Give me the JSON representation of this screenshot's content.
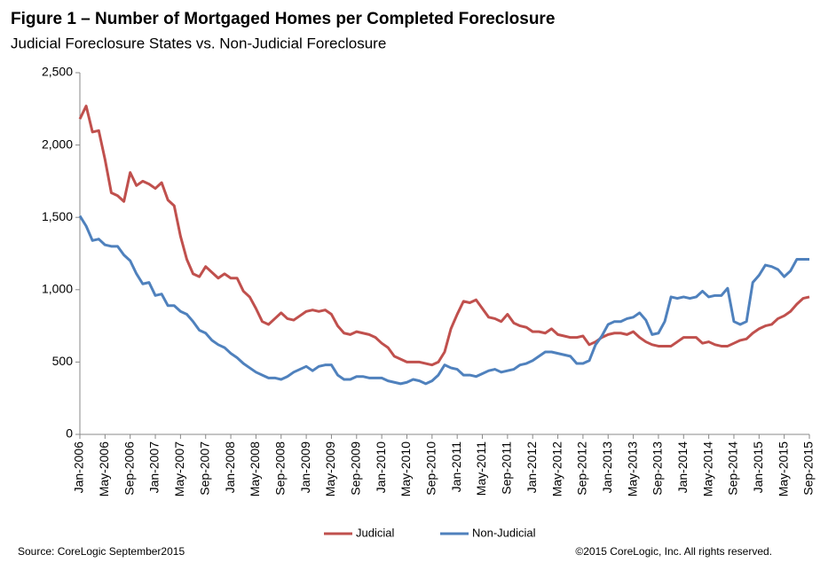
{
  "chart_data": {
    "type": "line",
    "title": "Figure 1 – Number of Mortgaged Homes per Completed Foreclosure",
    "subtitle": "Judicial Foreclosure States vs. Non-Judicial Foreclosure",
    "source": "Source: CoreLogic  September2015",
    "copyright": "©2015 CoreLogic, Inc. All rights reserved.",
    "categories": [
      "Jan-2006",
      null,
      null,
      null,
      "May-2006",
      null,
      null,
      null,
      "Sep-2006",
      null,
      null,
      null,
      "Jan-2007",
      null,
      null,
      null,
      "May-2007",
      null,
      null,
      null,
      "Sep-2007",
      null,
      null,
      null,
      "Jan-2008",
      null,
      null,
      null,
      "May-2008",
      null,
      null,
      null,
      "Sep-2008",
      null,
      null,
      null,
      "Jan-2009",
      null,
      null,
      null,
      "May-2009",
      null,
      null,
      null,
      "Sep-2009",
      null,
      null,
      null,
      "Jan-2010",
      null,
      null,
      null,
      "May-2010",
      null,
      null,
      null,
      "Sep-2010",
      null,
      null,
      null,
      "Jan-2011",
      null,
      null,
      null,
      "May-2011",
      null,
      null,
      null,
      "Sep-2011",
      null,
      null,
      null,
      "Jan-2012",
      null,
      null,
      null,
      "May-2012",
      null,
      null,
      null,
      "Sep-2012",
      null,
      null,
      null,
      "Jan-2013",
      null,
      null,
      null,
      "May-2013",
      null,
      null,
      null,
      "Sep-2013",
      null,
      null,
      null,
      "Jan-2014",
      null,
      null,
      null,
      "May-2014",
      null,
      null,
      null,
      "Sep-2014",
      null,
      null,
      null,
      "Jan-2015",
      null,
      null,
      null,
      "May-2015",
      null,
      null,
      null,
      "Sep-2015"
    ],
    "series": [
      {
        "name": "Judicial",
        "color": "#c0504d",
        "values": [
          2180,
          2270,
          2090,
          2100,
          1900,
          1670,
          1650,
          1610,
          1810,
          1720,
          1750,
          1730,
          1700,
          1740,
          1620,
          1580,
          1370,
          1210,
          1110,
          1090,
          1160,
          1120,
          1080,
          1110,
          1080,
          1080,
          990,
          950,
          870,
          780,
          760,
          800,
          840,
          800,
          790,
          820,
          850,
          860,
          850,
          860,
          830,
          750,
          700,
          690,
          710,
          700,
          690,
          670,
          630,
          600,
          540,
          520,
          500,
          500,
          500,
          490,
          480,
          500,
          570,
          730,
          830,
          920,
          910,
          930,
          870,
          810,
          800,
          780,
          830,
          770,
          750,
          740,
          710,
          710,
          700,
          730,
          690,
          680,
          670,
          670,
          680,
          620,
          640,
          670,
          690,
          700,
          700,
          690,
          710,
          670,
          640,
          620,
          610,
          610,
          610,
          640,
          670,
          670,
          670,
          630,
          640,
          620,
          610,
          610,
          630,
          650,
          660,
          700,
          730,
          750,
          760,
          800,
          820,
          850,
          900,
          940,
          950
        ]
      },
      {
        "name": "Non-Judicial",
        "color": "#4f81bd",
        "values": [
          1510,
          1440,
          1340,
          1350,
          1310,
          1300,
          1300,
          1240,
          1200,
          1110,
          1040,
          1050,
          960,
          970,
          890,
          890,
          850,
          830,
          780,
          720,
          700,
          650,
          620,
          600,
          560,
          530,
          490,
          460,
          430,
          410,
          390,
          390,
          380,
          400,
          430,
          450,
          470,
          440,
          470,
          480,
          480,
          410,
          380,
          380,
          400,
          400,
          390,
          390,
          390,
          370,
          360,
          350,
          360,
          380,
          370,
          350,
          370,
          410,
          480,
          460,
          450,
          410,
          410,
          400,
          420,
          440,
          450,
          430,
          440,
          450,
          480,
          490,
          510,
          540,
          570,
          570,
          560,
          550,
          540,
          490,
          490,
          510,
          620,
          680,
          760,
          780,
          780,
          800,
          810,
          840,
          790,
          690,
          700,
          780,
          950,
          940,
          950,
          940,
          950,
          990,
          950,
          960,
          960,
          1010,
          780,
          760,
          780,
          1050,
          1100,
          1170,
          1160,
          1140,
          1090,
          1130,
          1210,
          1210,
          1210
        ]
      }
    ],
    "ylim": [
      0,
      2500
    ],
    "yticks": [
      0,
      500,
      {
        "value": 1000,
        "label": "1,000"
      },
      {
        "value": 1500,
        "label": "1,500"
      },
      {
        "value": 2000,
        "label": "2,000"
      },
      {
        "value": 2500,
        "label": "2,500"
      }
    ],
    "grid": false,
    "legend": "bottom"
  }
}
